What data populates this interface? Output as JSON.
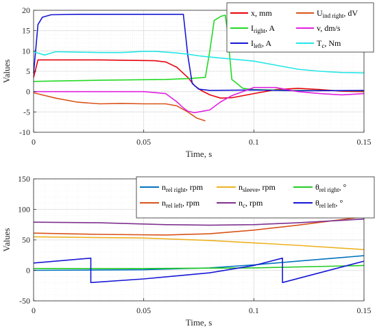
{
  "chart_data": [
    {
      "type": "line",
      "xlabel": "Time, s",
      "ylabel": "Values",
      "xlim": [
        0,
        0.15
      ],
      "ylim": [
        -10,
        20
      ],
      "xticks": [
        0,
        0.05,
        0.1,
        0.15
      ],
      "xtick_labels": [
        "0",
        "0.05",
        "0.1",
        "0.15"
      ],
      "yticks": [
        -10,
        -5,
        0,
        5,
        10,
        15,
        20
      ],
      "ytick_labels": [
        "-10",
        "-5",
        "0",
        "5",
        "10",
        "15",
        "20"
      ],
      "grid": true,
      "legend_position": "top-right",
      "series": [
        {
          "name": "x, mm",
          "base": "x, mm",
          "color": "#e8000b",
          "x": [
            0,
            0.002,
            0.03,
            0.055,
            0.06,
            0.065,
            0.07,
            0.073,
            0.076,
            0.08,
            0.085,
            0.09,
            0.1,
            0.11,
            0.12,
            0.13,
            0.14,
            0.15
          ],
          "values": [
            3.5,
            7.8,
            7.8,
            7.6,
            7.3,
            6.0,
            3.5,
            1.5,
            0.3,
            -0.8,
            -1.6,
            -1.5,
            -0.5,
            0.5,
            0.8,
            0.5,
            0.1,
            0
          ]
        },
        {
          "name": "I_right, A",
          "base": "I",
          "sub": "right",
          "tail": ", A",
          "color": "#22d922",
          "x": [
            0,
            0.01,
            0.03,
            0.06,
            0.07,
            0.078,
            0.08,
            0.082,
            0.085,
            0.087,
            0.088,
            0.09,
            0.095,
            0.1,
            0.12,
            0.15
          ],
          "values": [
            2.5,
            2.6,
            2.8,
            3.0,
            3.2,
            3.5,
            10,
            17.5,
            18.5,
            18.8,
            15,
            3,
            0.8,
            0.5,
            0.3,
            0.2
          ]
        },
        {
          "name": "I_left, A",
          "base": "I",
          "sub": "left",
          "tail": ", A",
          "color": "#1515d6",
          "x": [
            0,
            0.002,
            0.004,
            0.008,
            0.02,
            0.04,
            0.06,
            0.068,
            0.07,
            0.072,
            0.075,
            0.08,
            0.1,
            0.12,
            0.15
          ],
          "values": [
            4.5,
            16.5,
            18.3,
            18.9,
            19.0,
            19.0,
            19.0,
            19.0,
            9,
            2,
            0.6,
            0.3,
            0.4,
            0.2,
            0.3
          ]
        },
        {
          "name": "U_ind right, dV",
          "base": "U",
          "sub": "ind right",
          "tail": ", dV",
          "color": "#d95319",
          "x": [
            0,
            0.01,
            0.02,
            0.03,
            0.04,
            0.05,
            0.06,
            0.065,
            0.07,
            0.074,
            0.078
          ],
          "values": [
            -0.3,
            -1.6,
            -2.6,
            -3.0,
            -2.9,
            -3.0,
            -3.0,
            -3.5,
            -5.0,
            -6.5,
            -7.2
          ]
        },
        {
          "name": "v, dm/s",
          "base": "v, dm/s",
          "color": "#e020e0",
          "x": [
            0,
            0.05,
            0.06,
            0.065,
            0.068,
            0.07,
            0.073,
            0.075,
            0.08,
            0.085,
            0.09,
            0.1,
            0.11,
            0.12,
            0.13,
            0.14,
            0.15
          ],
          "values": [
            0,
            0,
            -0.5,
            -2.5,
            -4.0,
            -4.8,
            -5.2,
            -5.0,
            -4.5,
            -2.5,
            -1.0,
            1.0,
            1.0,
            0,
            -0.5,
            -0.8,
            -0.5
          ]
        },
        {
          "name": "T_c, Nm",
          "base": "T",
          "sub": "c",
          "tail": ", Nm",
          "color": "#22e6e6",
          "x": [
            0,
            0.005,
            0.01,
            0.02,
            0.03,
            0.04,
            0.05,
            0.055,
            0.06,
            0.065,
            0.07,
            0.075,
            0.08,
            0.09,
            0.1,
            0.11,
            0.12,
            0.13,
            0.14,
            0.15
          ],
          "values": [
            9.8,
            9.0,
            9.8,
            9.7,
            9.6,
            9.6,
            9.9,
            9.9,
            9.7,
            9.5,
            9.2,
            8.8,
            8.5,
            8.0,
            7.5,
            6.5,
            5.5,
            5.0,
            4.7,
            4.6
          ]
        }
      ]
    },
    {
      "type": "line",
      "xlabel": "Time, s",
      "ylabel": "Values",
      "xlim": [
        0,
        0.15
      ],
      "ylim": [
        -50,
        150
      ],
      "xticks": [
        0,
        0.05,
        0.1,
        0.15
      ],
      "xtick_labels": [
        "0",
        "0.05",
        "0.1",
        "0.15"
      ],
      "yticks": [
        -50,
        0,
        50,
        100,
        150
      ],
      "ytick_labels": [
        "-50",
        "0",
        "50",
        "100",
        "150"
      ],
      "grid": true,
      "legend_position": "top",
      "series": [
        {
          "name": "n_rel right, rpm",
          "base": "n",
          "sub": "rel right",
          "tail": ", rpm",
          "color": "#0072bd",
          "x": [
            0,
            0.05,
            0.08,
            0.1,
            0.12,
            0.15
          ],
          "values": [
            0,
            1,
            4,
            9,
            15,
            24
          ]
        },
        {
          "name": "n_rel left, rpm",
          "base": "n",
          "sub": "rel left",
          "tail": ", rpm",
          "color": "#d95319",
          "x": [
            0,
            0.03,
            0.06,
            0.08,
            0.1,
            0.12,
            0.15
          ],
          "values": [
            61,
            59,
            58,
            60,
            66,
            74,
            88
          ]
        },
        {
          "name": "n_sleeve, rpm",
          "base": "n",
          "sub": "sleeve",
          "tail": ", rpm",
          "color": "#edb120",
          "x": [
            0,
            0.05,
            0.08,
            0.1,
            0.12,
            0.15
          ],
          "values": [
            55,
            53,
            49,
            45,
            41,
            34
          ]
        },
        {
          "name": "n_c, rpm",
          "base": "n",
          "sub": "c",
          "tail": ", rpm",
          "color": "#7e2f8e",
          "x": [
            0,
            0.03,
            0.06,
            0.08,
            0.1,
            0.12,
            0.15
          ],
          "values": [
            79,
            78,
            75,
            74,
            75,
            78,
            84
          ]
        },
        {
          "name": "θ_rel right, °",
          "base": "θ",
          "sub": "rel right",
          "tail": ", °",
          "color": "#22cc22",
          "x": [
            0,
            0.05,
            0.1,
            0.15
          ],
          "values": [
            3,
            3,
            4,
            8
          ]
        },
        {
          "name": "θ_rel left, °",
          "base": "θ",
          "sub": "rel left",
          "tail": ", °",
          "color": "#1515d6",
          "x": [
            0,
            0.026,
            0.026,
            0.05,
            0.08,
            0.1,
            0.113,
            0.113,
            0.15
          ],
          "values": [
            12,
            20,
            -20,
            -14,
            -4,
            8,
            20,
            -20,
            15
          ]
        }
      ]
    }
  ]
}
